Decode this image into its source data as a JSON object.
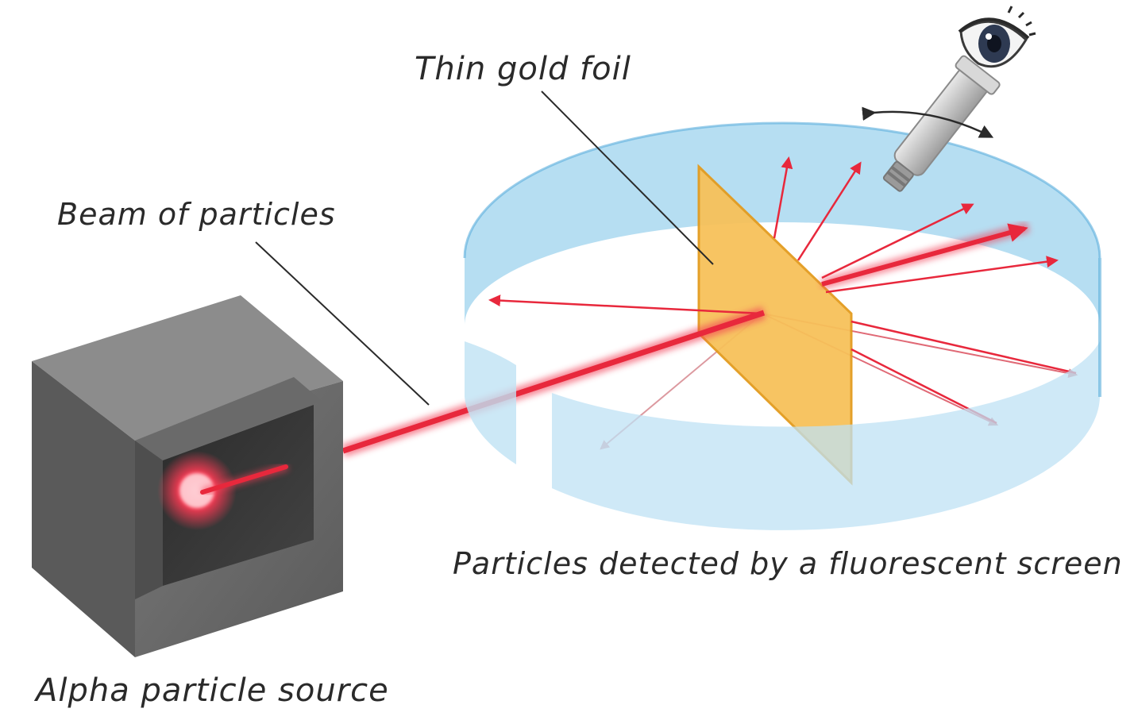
{
  "labels": {
    "gold_foil": "Thin gold foil",
    "beam": "Beam of particles",
    "screen": "Particles detected by a fluorescent screen",
    "source": "Alpha particle source"
  },
  "colors": {
    "beam": "#e8283c",
    "screen": "#9fd3ee",
    "screen_edge": "#5aaedc",
    "foil": "#f7c15a",
    "foil_edge": "#e39b1e",
    "box": "#6e6e6e",
    "box_dark": "#3a3a3a"
  },
  "icons": [
    "eye-icon",
    "microscope-icon",
    "double-arrow-icon"
  ]
}
